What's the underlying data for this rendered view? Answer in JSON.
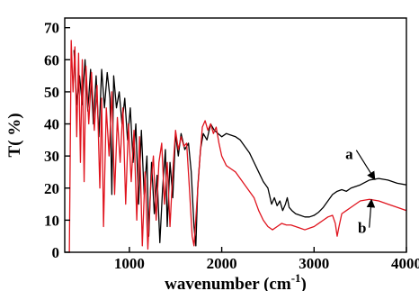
{
  "chart_data": {
    "type": "line",
    "title": "",
    "xlabel": "wavenumber (cm",
    "xlabel_sup": "-1",
    "xlabel_close": ")",
    "ylabel": "T( %)",
    "xlim": [
      300,
      4000
    ],
    "ylim": [
      0,
      73
    ],
    "x_ticks": [
      1000,
      2000,
      3000,
      4000
    ],
    "y_ticks": [
      0,
      10,
      20,
      30,
      40,
      50,
      60,
      70
    ],
    "grid": false,
    "series": [
      {
        "name": "a",
        "color": "#000000",
        "points": [
          [
            400,
            63
          ],
          [
            430,
            46
          ],
          [
            460,
            55
          ],
          [
            490,
            46
          ],
          [
            520,
            60
          ],
          [
            550,
            44
          ],
          [
            580,
            57
          ],
          [
            610,
            40
          ],
          [
            640,
            55
          ],
          [
            670,
            36
          ],
          [
            700,
            57
          ],
          [
            730,
            45
          ],
          [
            760,
            56
          ],
          [
            790,
            48
          ],
          [
            810,
            18
          ],
          [
            830,
            55
          ],
          [
            860,
            45
          ],
          [
            890,
            50
          ],
          [
            920,
            40
          ],
          [
            950,
            48
          ],
          [
            980,
            35
          ],
          [
            1010,
            45
          ],
          [
            1040,
            28
          ],
          [
            1070,
            40
          ],
          [
            1100,
            15
          ],
          [
            1130,
            38
          ],
          [
            1160,
            18
          ],
          [
            1190,
            30
          ],
          [
            1210,
            5
          ],
          [
            1240,
            28
          ],
          [
            1270,
            12
          ],
          [
            1300,
            24
          ],
          [
            1330,
            3
          ],
          [
            1360,
            20
          ],
          [
            1390,
            32
          ],
          [
            1410,
            8
          ],
          [
            1440,
            28
          ],
          [
            1470,
            17
          ],
          [
            1500,
            37
          ],
          [
            1530,
            30
          ],
          [
            1560,
            37
          ],
          [
            1600,
            32
          ],
          [
            1640,
            34
          ],
          [
            1670,
            25
          ],
          [
            1700,
            8
          ],
          [
            1720,
            2
          ],
          [
            1740,
            20
          ],
          [
            1770,
            32
          ],
          [
            1800,
            37
          ],
          [
            1840,
            35
          ],
          [
            1880,
            40
          ],
          [
            1920,
            38
          ],
          [
            1960,
            37
          ],
          [
            2000,
            36
          ],
          [
            2050,
            37
          ],
          [
            2100,
            36.5
          ],
          [
            2150,
            36
          ],
          [
            2200,
            35
          ],
          [
            2250,
            33
          ],
          [
            2300,
            31
          ],
          [
            2350,
            28
          ],
          [
            2400,
            25
          ],
          [
            2450,
            22
          ],
          [
            2500,
            20
          ],
          [
            2540,
            15
          ],
          [
            2570,
            17
          ],
          [
            2600,
            14.5
          ],
          [
            2630,
            16
          ],
          [
            2660,
            13
          ],
          [
            2690,
            15
          ],
          [
            2710,
            17
          ],
          [
            2730,
            14
          ],
          [
            2760,
            13
          ],
          [
            2800,
            12
          ],
          [
            2850,
            11.5
          ],
          [
            2900,
            11
          ],
          [
            2950,
            11
          ],
          [
            3000,
            11.5
          ],
          [
            3050,
            12.5
          ],
          [
            3100,
            14
          ],
          [
            3150,
            16
          ],
          [
            3200,
            18
          ],
          [
            3250,
            19
          ],
          [
            3300,
            19.5
          ],
          [
            3350,
            19
          ],
          [
            3400,
            20
          ],
          [
            3450,
            20.5
          ],
          [
            3500,
            21
          ],
          [
            3600,
            22.5
          ],
          [
            3700,
            23
          ],
          [
            3800,
            22.5
          ],
          [
            3900,
            21.5
          ],
          [
            4000,
            21
          ]
        ]
      },
      {
        "name": "b",
        "color": "#e0141e",
        "points": [
          [
            350,
            0
          ],
          [
            370,
            66
          ],
          [
            390,
            50
          ],
          [
            410,
            64
          ],
          [
            430,
            36
          ],
          [
            450,
            62
          ],
          [
            470,
            28
          ],
          [
            490,
            60
          ],
          [
            510,
            22
          ],
          [
            530,
            58
          ],
          [
            560,
            40
          ],
          [
            590,
            56
          ],
          [
            620,
            38
          ],
          [
            650,
            52
          ],
          [
            680,
            20
          ],
          [
            700,
            48
          ],
          [
            720,
            8
          ],
          [
            750,
            45
          ],
          [
            780,
            30
          ],
          [
            810,
            50
          ],
          [
            840,
            18
          ],
          [
            870,
            42
          ],
          [
            900,
            28
          ],
          [
            930,
            45
          ],
          [
            960,
            15
          ],
          [
            990,
            40
          ],
          [
            1020,
            22
          ],
          [
            1050,
            38
          ],
          [
            1080,
            10
          ],
          [
            1110,
            36
          ],
          [
            1140,
            2
          ],
          [
            1170,
            25
          ],
          [
            1200,
            1
          ],
          [
            1230,
            20
          ],
          [
            1260,
            30
          ],
          [
            1290,
            10
          ],
          [
            1320,
            28
          ],
          [
            1350,
            34
          ],
          [
            1380,
            15
          ],
          [
            1410,
            28
          ],
          [
            1440,
            8
          ],
          [
            1470,
            25
          ],
          [
            1500,
            38
          ],
          [
            1530,
            32
          ],
          [
            1560,
            36
          ],
          [
            1590,
            33
          ],
          [
            1620,
            34
          ],
          [
            1650,
            20
          ],
          [
            1680,
            5
          ],
          [
            1700,
            2
          ],
          [
            1730,
            15
          ],
          [
            1760,
            28
          ],
          [
            1790,
            39
          ],
          [
            1820,
            41
          ],
          [
            1850,
            38
          ],
          [
            1880,
            40
          ],
          [
            1910,
            37
          ],
          [
            1940,
            39
          ],
          [
            1970,
            34
          ],
          [
            2000,
            30
          ],
          [
            2050,
            27
          ],
          [
            2100,
            26
          ],
          [
            2150,
            25
          ],
          [
            2200,
            23
          ],
          [
            2250,
            21
          ],
          [
            2300,
            19
          ],
          [
            2350,
            17
          ],
          [
            2400,
            13
          ],
          [
            2450,
            10
          ],
          [
            2500,
            8
          ],
          [
            2550,
            7
          ],
          [
            2600,
            8
          ],
          [
            2650,
            9
          ],
          [
            2700,
            8.5
          ],
          [
            2750,
            8.5
          ],
          [
            2800,
            8
          ],
          [
            2850,
            7.5
          ],
          [
            2900,
            7
          ],
          [
            2950,
            7.5
          ],
          [
            3000,
            8
          ],
          [
            3050,
            9
          ],
          [
            3100,
            10
          ],
          [
            3150,
            11
          ],
          [
            3200,
            11.5
          ],
          [
            3230,
            9
          ],
          [
            3250,
            5
          ],
          [
            3270,
            8
          ],
          [
            3300,
            12
          ],
          [
            3350,
            13
          ],
          [
            3400,
            14
          ],
          [
            3500,
            16
          ],
          [
            3600,
            16.5
          ],
          [
            3700,
            16
          ],
          [
            3800,
            15
          ],
          [
            3900,
            14
          ],
          [
            4000,
            13
          ]
        ]
      }
    ],
    "annotations": [
      {
        "text": "a",
        "anchor_x": 3650,
        "anchor_y": 23,
        "label_x": 3380,
        "label_y": 29
      },
      {
        "text": "b",
        "anchor_x": 3620,
        "anchor_y": 16,
        "label_x": 3520,
        "label_y": 6
      }
    ]
  }
}
